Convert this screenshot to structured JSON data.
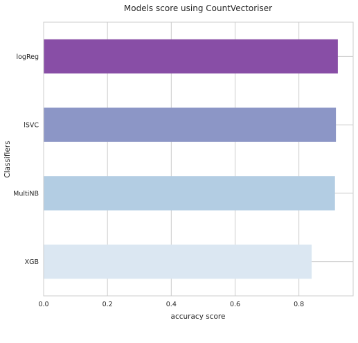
{
  "chart_data": {
    "type": "bar",
    "orientation": "horizontal",
    "title": "Models score using CountVectoriser",
    "xlabel": "accuracy score",
    "ylabel": "Classifiers",
    "categories": [
      "logReg",
      "lSVC",
      "MultiNB",
      "XGB"
    ],
    "values": [
      0.922,
      0.916,
      0.913,
      0.84
    ],
    "bar_colors": [
      "#884ea6",
      "#8c96c6",
      "#b3cde3",
      "#dbe7f2"
    ],
    "xlim": [
      0,
      0.97
    ],
    "xticks": [
      0.0,
      0.2,
      0.4,
      0.6,
      0.8
    ],
    "xtick_labels": [
      "0.0",
      "0.2",
      "0.4",
      "0.6",
      "0.8"
    ],
    "grid": true
  }
}
